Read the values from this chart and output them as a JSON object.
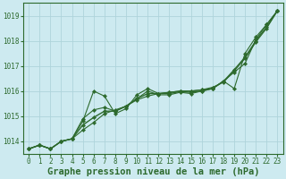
{
  "x": [
    0,
    1,
    2,
    3,
    4,
    5,
    6,
    7,
    8,
    9,
    10,
    11,
    12,
    13,
    14,
    15,
    16,
    17,
    18,
    19,
    20,
    21,
    22,
    23
  ],
  "line1": [
    1013.7,
    1013.85,
    1013.7,
    1014.0,
    1014.1,
    1014.8,
    1016.0,
    1015.8,
    1015.1,
    1015.3,
    1015.85,
    1016.1,
    1015.9,
    1015.95,
    1016.0,
    1016.0,
    1016.05,
    1016.1,
    1016.4,
    1016.1,
    1017.5,
    1018.15,
    1018.65,
    1019.2
  ],
  "line2": [
    1013.7,
    1013.85,
    1013.7,
    1014.0,
    1014.1,
    1014.45,
    1014.75,
    1015.1,
    1015.25,
    1015.4,
    1015.65,
    1015.8,
    1015.9,
    1015.95,
    1016.0,
    1016.0,
    1016.05,
    1016.15,
    1016.35,
    1016.8,
    1017.3,
    1017.95,
    1018.5,
    1019.2
  ],
  "line3": [
    1013.7,
    1013.85,
    1013.7,
    1014.0,
    1014.1,
    1014.9,
    1015.25,
    1015.35,
    1015.2,
    1015.4,
    1015.7,
    1016.0,
    1015.85,
    1015.85,
    1015.95,
    1015.9,
    1016.0,
    1016.1,
    1016.4,
    1016.75,
    1017.1,
    1018.05,
    1018.65,
    1019.2
  ],
  "line4": [
    1013.7,
    1013.85,
    1013.7,
    1014.0,
    1014.1,
    1014.65,
    1014.95,
    1015.2,
    1015.2,
    1015.4,
    1015.7,
    1015.9,
    1015.9,
    1015.9,
    1015.98,
    1015.95,
    1016.0,
    1016.1,
    1016.38,
    1016.85,
    1017.35,
    1018.0,
    1018.55,
    1019.2
  ],
  "line_color": "#2d6a2d",
  "bg_color": "#cdeaf0",
  "grid_color": "#aed4db",
  "xlabel": "Graphe pression niveau de la mer (hPa)",
  "ylim": [
    1013.5,
    1019.5
  ],
  "xlim": [
    -0.5,
    23.5
  ],
  "yticks": [
    1014,
    1015,
    1016,
    1017,
    1018,
    1019
  ],
  "xticks": [
    0,
    1,
    2,
    3,
    4,
    5,
    6,
    7,
    8,
    9,
    10,
    11,
    12,
    13,
    14,
    15,
    16,
    17,
    18,
    19,
    20,
    21,
    22,
    23
  ],
  "tick_fontsize": 5.5,
  "xlabel_fontsize": 7.5
}
